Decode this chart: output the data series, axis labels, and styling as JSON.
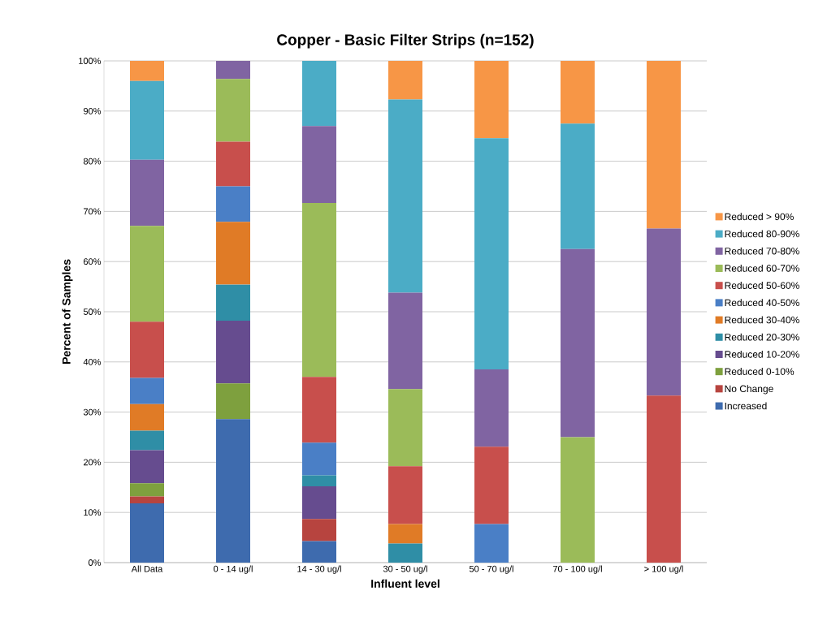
{
  "chart_data": {
    "type": "bar",
    "stacked": true,
    "title": "Copper - Basic Filter Strips (n=152)",
    "xlabel": "Influent level",
    "ylabel": "Percent of Samples",
    "categories": [
      "All Data",
      "0 - 14 ug/l",
      "14 - 30 ug/l",
      "30 - 50 ug/l",
      "50 - 70 ug/l",
      "70 - 100 ug/l",
      "> 100 ug/l"
    ],
    "ylim": [
      0,
      100
    ],
    "yticks": [
      {
        "value": 0,
        "label": "0%"
      },
      {
        "value": 10,
        "label": "10%"
      },
      {
        "value": 20,
        "label": "20%"
      },
      {
        "value": 30,
        "label": "30%"
      },
      {
        "value": 40,
        "label": "40%"
      },
      {
        "value": 50,
        "label": "50%"
      },
      {
        "value": 60,
        "label": "60%"
      },
      {
        "value": 70,
        "label": "70%"
      },
      {
        "value": 80,
        "label": "80%"
      },
      {
        "value": 90,
        "label": "90%"
      },
      {
        "value": 100,
        "label": "100%"
      }
    ],
    "grid": "y",
    "legend": "right",
    "series": [
      {
        "name": "Increased",
        "color": "#3e6bae",
        "values": [
          11.8,
          28.6,
          4.3,
          0,
          0,
          0,
          0
        ]
      },
      {
        "name": "No Change",
        "color": "#b7443f",
        "values": [
          1.4,
          0,
          4.4,
          0,
          0,
          0,
          0
        ]
      },
      {
        "name": "Reduced 0-10%",
        "color": "#7ea03e",
        "values": [
          2.6,
          7.1,
          0,
          0,
          0,
          0,
          0
        ]
      },
      {
        "name": "Reduced 10-20%",
        "color": "#664c8f",
        "values": [
          6.6,
          12.5,
          6.5,
          0,
          0,
          0,
          0
        ]
      },
      {
        "name": "Reduced 20-30%",
        "color": "#2f8ea6",
        "values": [
          3.9,
          7.2,
          2.2,
          3.8,
          0,
          0,
          0
        ]
      },
      {
        "name": "Reduced 30-40%",
        "color": "#e07b26",
        "values": [
          5.3,
          12.5,
          0,
          3.9,
          0,
          0,
          0
        ]
      },
      {
        "name": "Reduced 40-50%",
        "color": "#4a7fc6",
        "values": [
          5.2,
          7.1,
          6.5,
          0,
          7.7,
          0,
          0
        ]
      },
      {
        "name": "Reduced 50-60%",
        "color": "#c84f4c",
        "values": [
          11.2,
          8.9,
          13.1,
          11.5,
          15.4,
          0,
          33.3
        ]
      },
      {
        "name": "Reduced 60-70%",
        "color": "#9bbb59",
        "values": [
          19.1,
          12.5,
          34.7,
          15.4,
          0,
          25,
          0
        ]
      },
      {
        "name": "Reduced 70-80%",
        "color": "#8064a2",
        "values": [
          13.2,
          3.6,
          15.3,
          19.2,
          15.4,
          37.5,
          33.3
        ]
      },
      {
        "name": "Reduced 80-90%",
        "color": "#4bacc6",
        "values": [
          15.7,
          0,
          13.0,
          38.5,
          46.1,
          25,
          0
        ]
      },
      {
        "name": "Reduced > 90%",
        "color": "#f79646",
        "values": [
          4.0,
          0,
          0,
          7.7,
          15.4,
          12.5,
          33.4
        ]
      }
    ]
  }
}
